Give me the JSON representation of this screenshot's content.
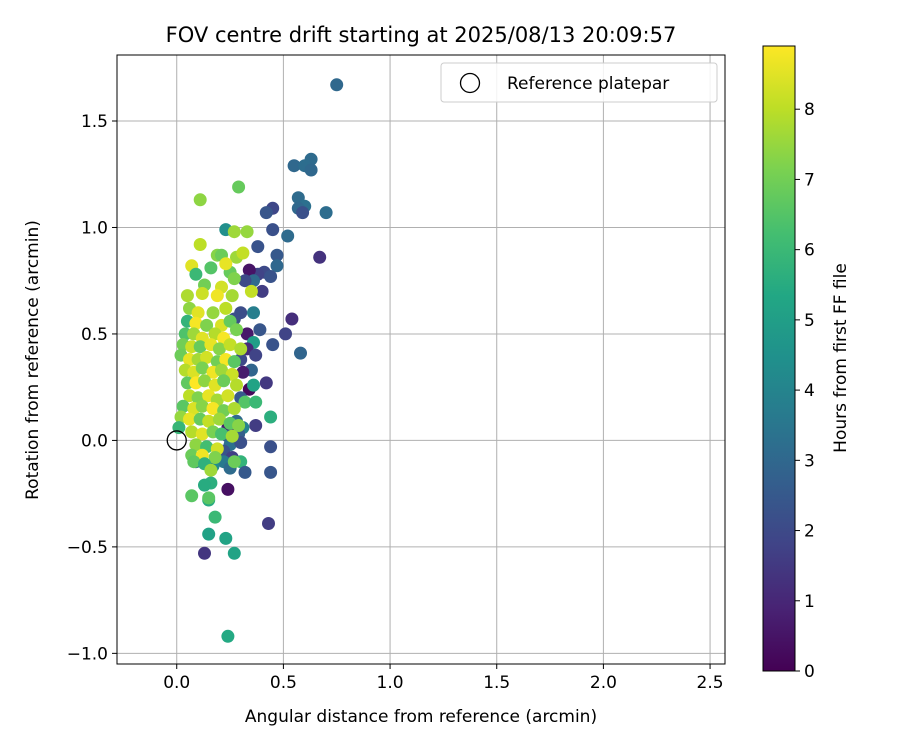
{
  "chart_data": {
    "type": "scatter",
    "title": "FOV centre drift starting at 2025/08/13 20:09:57",
    "xlabel": "Angular distance from reference (arcmin)",
    "ylabel": "Rotation from reference (arcmin)",
    "xlim": [
      -0.28,
      2.57
    ],
    "ylim": [
      -1.05,
      1.81
    ],
    "xticks": [
      0.0,
      0.5,
      1.0,
      1.5,
      2.0,
      2.5
    ],
    "xtick_labels": [
      "0.0",
      "0.5",
      "1.0",
      "1.5",
      "2.0",
      "2.5"
    ],
    "yticks": [
      -1.0,
      -0.5,
      0.0,
      0.5,
      1.0,
      1.5
    ],
    "ytick_labels": [
      "−1.0",
      "−0.5",
      "0.0",
      "0.5",
      "1.0",
      "1.5"
    ],
    "grid": true,
    "legend": {
      "placement": "top-right",
      "entries": [
        "Reference platepar"
      ]
    },
    "colorbar": {
      "label": "Hours from first FF file",
      "colormap": "viridis",
      "range": [
        0,
        8.9
      ],
      "ticks": [
        0,
        1,
        2,
        3,
        4,
        5,
        6,
        7,
        8
      ],
      "tick_labels": [
        "0",
        "1",
        "2",
        "3",
        "4",
        "5",
        "6",
        "7",
        "8"
      ]
    },
    "reference_point": {
      "x": 0.0,
      "y": 0.0,
      "label": "Reference platepar"
    },
    "series": [
      {
        "points": [
          [
            0.75,
            1.67,
            3.0
          ],
          [
            0.63,
            1.32,
            3.1
          ],
          [
            0.55,
            1.29,
            3.0
          ],
          [
            0.6,
            1.29,
            3.2
          ],
          [
            0.63,
            1.27,
            3.0
          ],
          [
            0.57,
            1.14,
            3.1
          ],
          [
            0.6,
            1.1,
            3.3
          ],
          [
            0.57,
            1.09,
            3.0
          ],
          [
            0.59,
            1.07,
            2.2
          ],
          [
            0.7,
            1.07,
            3.2
          ],
          [
            0.45,
            1.09,
            1.9
          ],
          [
            0.42,
            1.07,
            2.4
          ],
          [
            0.52,
            0.96,
            3.1
          ],
          [
            0.45,
            0.99,
            2.2
          ],
          [
            0.38,
            0.91,
            2.3
          ],
          [
            0.47,
            0.87,
            2.5
          ],
          [
            0.67,
            0.86,
            1.3
          ],
          [
            0.47,
            0.82,
            3.0
          ],
          [
            0.41,
            0.79,
            2.0
          ],
          [
            0.38,
            0.78,
            1.8
          ],
          [
            0.44,
            0.77,
            2.3
          ],
          [
            0.34,
            0.8,
            0.5
          ],
          [
            0.36,
            0.75,
            3.1
          ],
          [
            0.4,
            0.7,
            1.6
          ],
          [
            0.32,
            0.75,
            2.0
          ],
          [
            0.3,
            0.6,
            2.1
          ],
          [
            0.36,
            0.6,
            3.8
          ],
          [
            0.27,
            0.57,
            2.1
          ],
          [
            0.54,
            0.57,
            1.2
          ],
          [
            0.33,
            0.5,
            0.6
          ],
          [
            0.39,
            0.52,
            2.4
          ],
          [
            0.51,
            0.5,
            1.8
          ],
          [
            0.45,
            0.45,
            2.3
          ],
          [
            0.36,
            0.46,
            5.0
          ],
          [
            0.33,
            0.43,
            1.1
          ],
          [
            0.37,
            0.4,
            1.8
          ],
          [
            0.3,
            0.38,
            2.0
          ],
          [
            0.58,
            0.41,
            2.9
          ],
          [
            0.35,
            0.33,
            2.9
          ],
          [
            0.31,
            0.32,
            0.7
          ],
          [
            0.42,
            0.27,
            1.5
          ],
          [
            0.34,
            0.24,
            0.2
          ],
          [
            0.36,
            0.26,
            5.2
          ],
          [
            0.3,
            0.2,
            2.5
          ],
          [
            0.32,
            0.18,
            6.5
          ],
          [
            0.37,
            0.18,
            6.0
          ],
          [
            0.44,
            0.11,
            5.6
          ],
          [
            0.28,
            0.09,
            3.1
          ],
          [
            0.37,
            0.07,
            1.6
          ],
          [
            0.24,
            0.06,
            0.7
          ],
          [
            0.31,
            0.06,
            4.0
          ],
          [
            0.29,
            0.03,
            2.7
          ],
          [
            0.24,
            0.02,
            2.5
          ],
          [
            0.27,
            0.0,
            4.6
          ],
          [
            0.25,
            -0.02,
            3.3
          ],
          [
            0.3,
            -0.01,
            2.2
          ],
          [
            0.44,
            -0.03,
            2.2
          ],
          [
            0.22,
            -0.05,
            2.3
          ],
          [
            0.26,
            -0.08,
            1.7
          ],
          [
            0.3,
            -0.1,
            5.8
          ],
          [
            0.22,
            -0.1,
            3.6
          ],
          [
            0.09,
            -0.1,
            3.0
          ],
          [
            0.17,
            -0.12,
            4.3
          ],
          [
            0.25,
            -0.13,
            3.1
          ],
          [
            0.32,
            -0.15,
            2.5
          ],
          [
            0.44,
            -0.15,
            2.4
          ],
          [
            0.16,
            -0.2,
            5.6
          ],
          [
            0.07,
            -0.26,
            6.6
          ],
          [
            0.15,
            -0.28,
            5.5
          ],
          [
            0.24,
            -0.23,
            0.4
          ],
          [
            0.18,
            -0.36,
            6.0
          ],
          [
            0.43,
            -0.39,
            1.6
          ],
          [
            0.15,
            -0.44,
            5.1
          ],
          [
            0.23,
            -0.46,
            5.2
          ],
          [
            0.13,
            -0.53,
            1.4
          ],
          [
            0.27,
            -0.53,
            5.2
          ],
          [
            0.24,
            -0.92,
            5.4
          ],
          [
            0.11,
            1.13,
            7.4
          ],
          [
            0.29,
            1.19,
            6.8
          ],
          [
            0.23,
            0.99,
            4.4
          ],
          [
            0.11,
            0.92,
            8.0
          ],
          [
            0.19,
            0.87,
            7.3
          ],
          [
            0.27,
            0.98,
            7.6
          ],
          [
            0.33,
            0.98,
            7.5
          ],
          [
            0.21,
            0.87,
            6.9
          ],
          [
            0.28,
            0.86,
            7.6
          ],
          [
            0.31,
            0.88,
            8.1
          ],
          [
            0.07,
            0.82,
            8.5
          ],
          [
            0.16,
            0.81,
            6.5
          ],
          [
            0.25,
            0.79,
            6.8
          ],
          [
            0.23,
            0.83,
            8.6
          ],
          [
            0.09,
            0.78,
            6.0
          ],
          [
            0.13,
            0.73,
            7.0
          ],
          [
            0.21,
            0.72,
            8.3
          ],
          [
            0.27,
            0.76,
            7.2
          ],
          [
            0.05,
            0.68,
            7.8
          ],
          [
            0.12,
            0.69,
            8.2
          ],
          [
            0.19,
            0.68,
            8.7
          ],
          [
            0.26,
            0.68,
            7.7
          ],
          [
            0.35,
            0.7,
            8.1
          ],
          [
            0.06,
            0.62,
            7.4
          ],
          [
            0.1,
            0.6,
            8.5
          ],
          [
            0.17,
            0.6,
            7.5
          ],
          [
            0.23,
            0.62,
            8.0
          ],
          [
            0.05,
            0.56,
            5.8
          ],
          [
            0.09,
            0.55,
            8.8
          ],
          [
            0.14,
            0.54,
            7.2
          ],
          [
            0.21,
            0.54,
            8.4
          ],
          [
            0.25,
            0.56,
            6.8
          ],
          [
            0.04,
            0.5,
            6.4
          ],
          [
            0.08,
            0.5,
            7.6
          ],
          [
            0.12,
            0.48,
            8.5
          ],
          [
            0.18,
            0.5,
            7.9
          ],
          [
            0.22,
            0.48,
            8.8
          ],
          [
            0.28,
            0.52,
            7.1
          ],
          [
            0.03,
            0.45,
            7.0
          ],
          [
            0.07,
            0.44,
            8.2
          ],
          [
            0.11,
            0.44,
            6.8
          ],
          [
            0.16,
            0.45,
            8.6
          ],
          [
            0.2,
            0.43,
            7.3
          ],
          [
            0.25,
            0.45,
            8.1
          ],
          [
            0.3,
            0.43,
            7.8
          ],
          [
            0.02,
            0.4,
            6.9
          ],
          [
            0.06,
            0.38,
            8.6
          ],
          [
            0.1,
            0.38,
            7.7
          ],
          [
            0.14,
            0.39,
            8.3
          ],
          [
            0.19,
            0.37,
            7.0
          ],
          [
            0.23,
            0.38,
            8.8
          ],
          [
            0.27,
            0.37,
            6.6
          ],
          [
            0.04,
            0.33,
            7.9
          ],
          [
            0.08,
            0.32,
            8.4
          ],
          [
            0.12,
            0.34,
            7.1
          ],
          [
            0.17,
            0.32,
            8.7
          ],
          [
            0.21,
            0.33,
            7.6
          ],
          [
            0.26,
            0.31,
            8.2
          ],
          [
            0.05,
            0.27,
            6.7
          ],
          [
            0.09,
            0.27,
            8.9
          ],
          [
            0.13,
            0.28,
            7.4
          ],
          [
            0.18,
            0.26,
            8.5
          ],
          [
            0.22,
            0.28,
            6.9
          ],
          [
            0.28,
            0.26,
            7.9
          ],
          [
            0.06,
            0.21,
            8.0
          ],
          [
            0.1,
            0.2,
            7.2
          ],
          [
            0.15,
            0.21,
            8.6
          ],
          [
            0.19,
            0.19,
            7.7
          ],
          [
            0.24,
            0.21,
            8.3
          ],
          [
            0.03,
            0.16,
            6.6
          ],
          [
            0.08,
            0.15,
            8.4
          ],
          [
            0.12,
            0.16,
            7.3
          ],
          [
            0.17,
            0.15,
            8.8
          ],
          [
            0.22,
            0.14,
            7.0
          ],
          [
            0.27,
            0.15,
            7.8
          ],
          [
            0.02,
            0.11,
            7.5
          ],
          [
            0.06,
            0.1,
            8.6
          ],
          [
            0.11,
            0.1,
            6.8
          ],
          [
            0.15,
            0.09,
            8.1
          ],
          [
            0.2,
            0.1,
            7.6
          ],
          [
            0.25,
            0.08,
            6.6
          ],
          [
            0.29,
            0.07,
            7.3
          ],
          [
            0.01,
            0.06,
            5.9
          ],
          [
            0.07,
            0.04,
            7.9
          ],
          [
            0.12,
            0.03,
            8.5
          ],
          [
            0.17,
            0.04,
            7.1
          ],
          [
            0.21,
            0.03,
            6.3
          ],
          [
            0.26,
            0.02,
            7.7
          ],
          [
            0.09,
            -0.02,
            7.4
          ],
          [
            0.14,
            -0.03,
            6.2
          ],
          [
            0.19,
            -0.04,
            8.3
          ],
          [
            0.07,
            -0.07,
            6.9
          ],
          [
            0.12,
            -0.07,
            8.7
          ],
          [
            0.18,
            -0.08,
            7.2
          ],
          [
            0.08,
            -0.1,
            6.7
          ],
          [
            0.13,
            -0.11,
            5.7
          ],
          [
            0.15,
            -0.27,
            6.6
          ],
          [
            0.13,
            -0.21,
            5.5
          ],
          [
            0.16,
            -0.14,
            7.6
          ],
          [
            0.27,
            -0.1,
            6.9
          ]
        ]
      }
    ]
  }
}
